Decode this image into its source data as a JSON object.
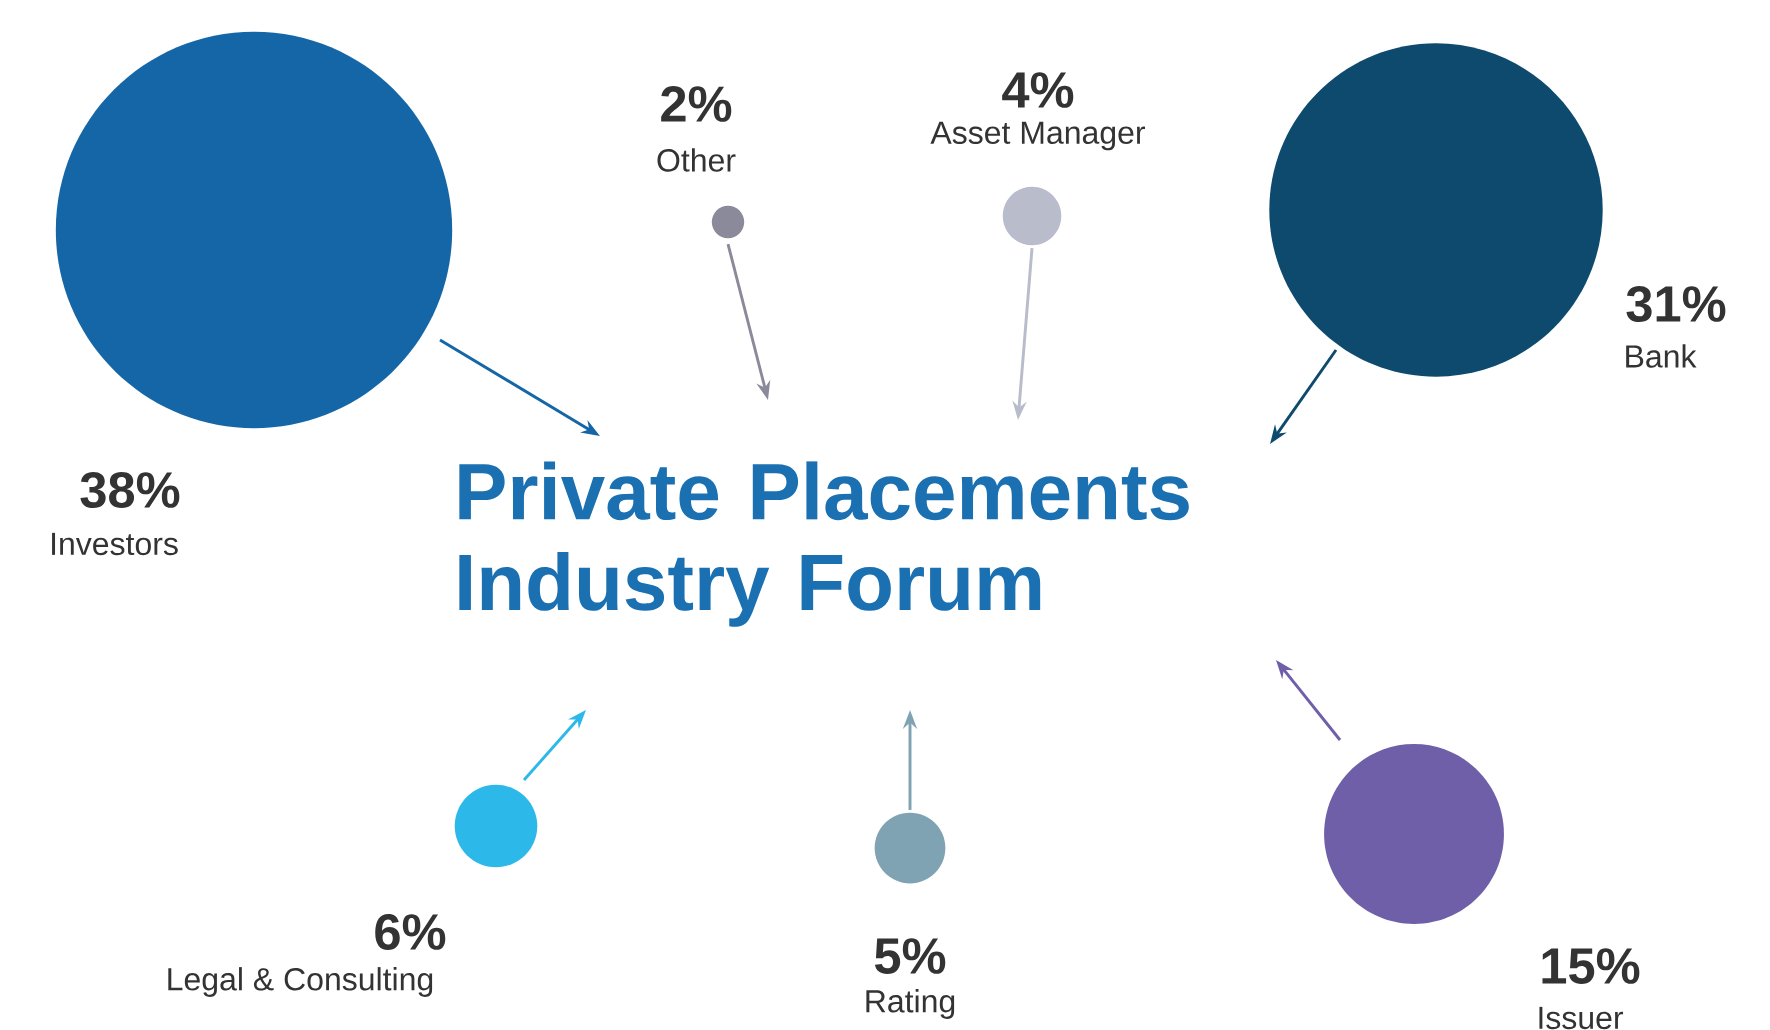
{
  "chart_data": {
    "type": "other",
    "title": "Private Placements Industry Forum",
    "categories": [
      "Investors",
      "Other",
      "Asset Manager",
      "Bank",
      "Legal & Consulting",
      "Rating",
      "Issuer"
    ],
    "values": [
      38,
      2,
      4,
      31,
      6,
      5,
      15
    ],
    "value_labels": [
      "38%",
      "2%",
      "4%",
      "31%",
      "6%",
      "5%",
      "15%"
    ],
    "colors": [
      "#1566a6",
      "#8a8a9a",
      "#b8bccb",
      "#0e4a6e",
      "#2cb9ea",
      "#7fa3b3",
      "#6f5fa8"
    ]
  }
}
